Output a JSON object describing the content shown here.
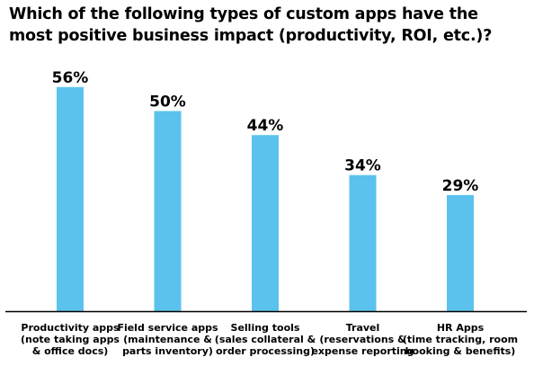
{
  "chart_data": {
    "type": "bar",
    "title_lines": [
      "Which of the following types of custom apps have the",
      "most positive business impact (productivity, ROI, etc.)?"
    ],
    "categories": [
      [
        "Productivity apps",
        "(note taking apps",
        "& office docs)"
      ],
      [
        "Field service apps",
        "(maintenance &",
        "parts inventory)"
      ],
      [
        "Selling tools",
        "(sales collateral &",
        "order processing)"
      ],
      [
        "Travel",
        "(reservations &",
        "expense reporting"
      ],
      [
        "HR Apps",
        "(time tracking, room",
        "booking & benefits)"
      ]
    ],
    "values": [
      56,
      50,
      44,
      34,
      29
    ],
    "value_labels": [
      "56%",
      "50%",
      "44%",
      "34%",
      "29%"
    ],
    "ylim": [
      0,
      60
    ],
    "grid": false,
    "legend": "none",
    "colors": {
      "bar": "#5BC2ED",
      "axis": "#000000",
      "text": "#000000"
    }
  }
}
